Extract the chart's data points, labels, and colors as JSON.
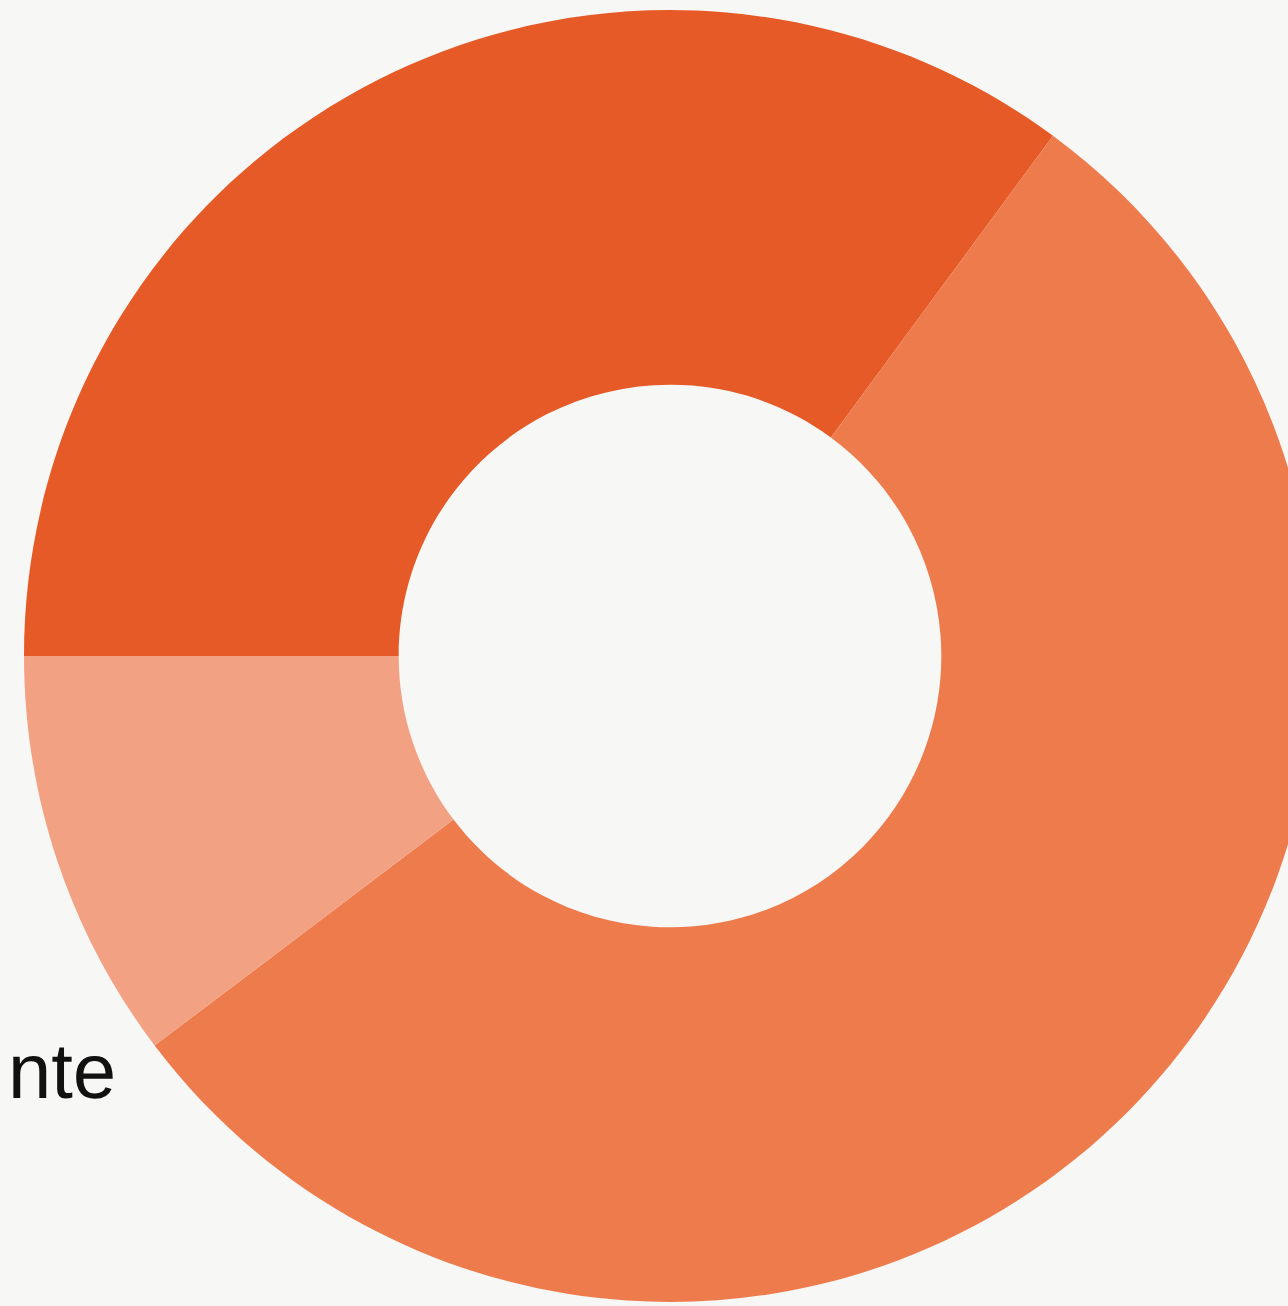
{
  "chart_data": {
    "type": "donut",
    "categories": [
      null,
      null,
      "nte"
    ],
    "values": [
      35.1,
      54.6,
      10.3
    ],
    "colors": [
      "#e65a28",
      "#ee7b4c",
      "#f2a283"
    ]
  }
}
